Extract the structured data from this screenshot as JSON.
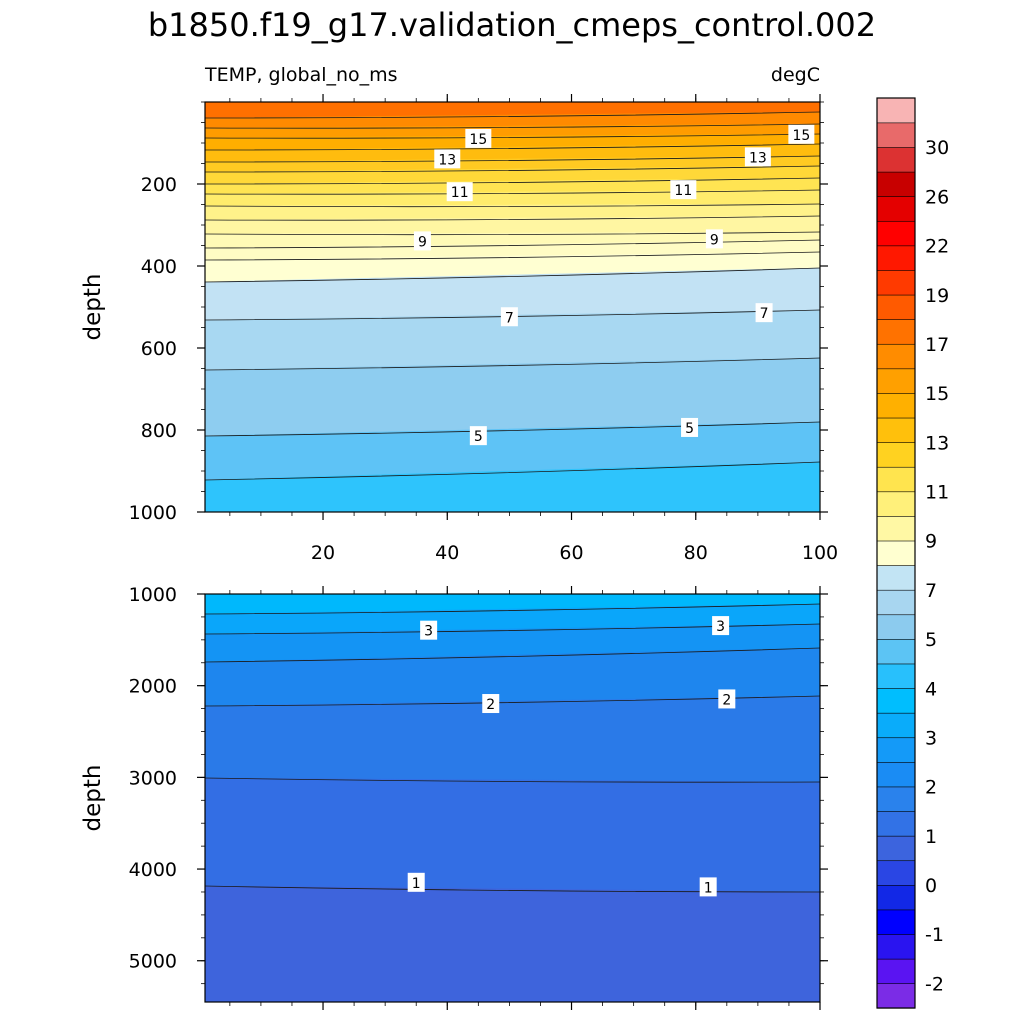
{
  "chart_data": {
    "type": "heatmap",
    "title": "b1850.f19_g17.validation_cmeps_control.002",
    "variable_label": "TEMP, global_no_ms",
    "units": "degC",
    "x_ticks": [
      "20",
      "40",
      "60",
      "80",
      "100"
    ],
    "xlim": [
      1,
      100
    ],
    "colorbar": {
      "tick_labels": [
        "-2",
        "-1",
        "0",
        "1",
        "2",
        "3",
        "4",
        "5",
        "7",
        "9",
        "11",
        "13",
        "15",
        "17",
        "19",
        "22",
        "26",
        "30"
      ],
      "colors": [
        "#7b2ce6",
        "#5a14f2",
        "#2a14f0",
        "#0000ff",
        "#1228e6",
        "#2a46e4",
        "#3c64de",
        "#3272e6",
        "#2a82ec",
        "#1a8cf4",
        "#149af8",
        "#0aacfa",
        "#00befe",
        "#28c0fc",
        "#5cc4f4",
        "#8ccbee",
        "#a8d6f0",
        "#c2e4f4",
        "#ffffd0",
        "#fff8a4",
        "#fff07a",
        "#ffe44e",
        "#ffd220",
        "#ffc00c",
        "#ffb000",
        "#ffa000",
        "#ff8c00",
        "#ff7200",
        "#ff5a00",
        "#ff3a00",
        "#ff1800",
        "#ff0000",
        "#e40000",
        "#c80000",
        "#dc3232",
        "#e86a6a",
        "#f8b4b4"
      ]
    },
    "panels": [
      {
        "name": "upper",
        "ylabel": "depth",
        "ylim": [
          0,
          1000
        ],
        "y_ticks": [
          "200",
          "400",
          "600",
          "800",
          "1000"
        ],
        "contour_labels": [
          {
            "text": "15",
            "x": 45,
            "y": 90
          },
          {
            "text": "15",
            "x": 97,
            "y": 80
          },
          {
            "text": "13",
            "x": 40,
            "y": 140
          },
          {
            "text": "13",
            "x": 90,
            "y": 135
          },
          {
            "text": "11",
            "x": 42,
            "y": 220
          },
          {
            "text": "11",
            "x": 78,
            "y": 215
          },
          {
            "text": "9",
            "x": 36,
            "y": 340
          },
          {
            "text": "9",
            "x": 83,
            "y": 335
          },
          {
            "text": "7",
            "x": 50,
            "y": 525
          },
          {
            "text": "7",
            "x": 91,
            "y": 515
          },
          {
            "text": "5",
            "x": 45,
            "y": 815
          },
          {
            "text": "5",
            "x": 79,
            "y": 795
          }
        ]
      },
      {
        "name": "lower",
        "ylabel": "depth",
        "ylim": [
          1000,
          5450
        ],
        "y_ticks": [
          "1000",
          "2000",
          "3000",
          "4000",
          "5000"
        ],
        "contour_labels": [
          {
            "text": "3",
            "x": 37,
            "y": 1400
          },
          {
            "text": "3",
            "x": 84,
            "y": 1350
          },
          {
            "text": "2",
            "x": 47,
            "y": 2200
          },
          {
            "text": "2",
            "x": 85,
            "y": 2150
          },
          {
            "text": "1",
            "x": 35,
            "y": 4150
          },
          {
            "text": "1",
            "x": 82,
            "y": 4200
          }
        ]
      }
    ]
  }
}
